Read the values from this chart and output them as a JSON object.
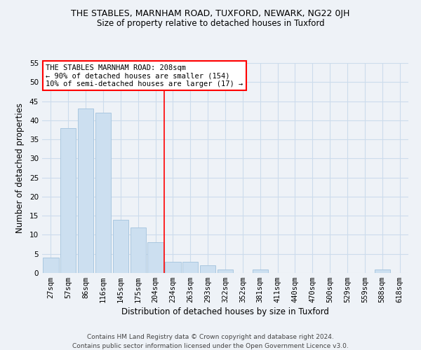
{
  "title": "THE STABLES, MARNHAM ROAD, TUXFORD, NEWARK, NG22 0JH",
  "subtitle": "Size of property relative to detached houses in Tuxford",
  "xlabel": "Distribution of detached houses by size in Tuxford",
  "ylabel": "Number of detached properties",
  "bar_color": "#ccdff0",
  "bar_edge_color": "#aac8e0",
  "categories": [
    "27sqm",
    "57sqm",
    "86sqm",
    "116sqm",
    "145sqm",
    "175sqm",
    "204sqm",
    "234sqm",
    "263sqm",
    "293sqm",
    "322sqm",
    "352sqm",
    "381sqm",
    "411sqm",
    "440sqm",
    "470sqm",
    "500sqm",
    "529sqm",
    "559sqm",
    "588sqm",
    "618sqm"
  ],
  "values": [
    4,
    38,
    43,
    42,
    14,
    12,
    8,
    3,
    3,
    2,
    1,
    0,
    1,
    0,
    0,
    0,
    0,
    0,
    0,
    1,
    0
  ],
  "ylim": [
    0,
    55
  ],
  "yticks": [
    0,
    5,
    10,
    15,
    20,
    25,
    30,
    35,
    40,
    45,
    50,
    55
  ],
  "annotation_line1": "THE STABLES MARNHAM ROAD: 208sqm",
  "annotation_line2": "← 90% of detached houses are smaller (154)",
  "annotation_line3": "10% of semi-detached houses are larger (17) →",
  "property_bar_index": 6,
  "grid_color": "#ccdcec",
  "background_color": "#eef2f7",
  "footer_line1": "Contains HM Land Registry data © Crown copyright and database right 2024.",
  "footer_line2": "Contains public sector information licensed under the Open Government Licence v3.0.",
  "title_fontsize": 9,
  "subtitle_fontsize": 8.5,
  "axis_label_fontsize": 8.5,
  "tick_fontsize": 7.5,
  "annotation_fontsize": 7.5,
  "footer_fontsize": 6.5
}
